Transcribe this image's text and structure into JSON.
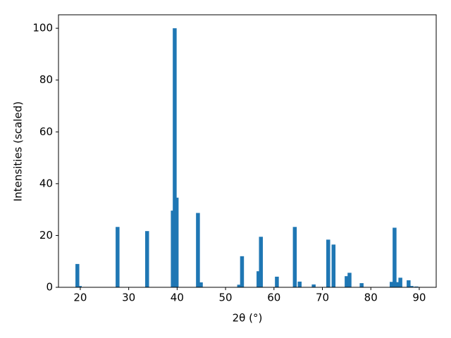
{
  "chart_data": {
    "type": "bar",
    "xlabel": "2θ (°)",
    "ylabel": "Intensities (scaled)",
    "x": [
      19.4,
      19.9,
      27.7,
      33.8,
      39.1,
      39.5,
      39.9,
      44.3,
      44.9,
      52.8,
      53.4,
      56.8,
      57.3,
      60.6,
      64.3,
      65.3,
      68.2,
      71.2,
      72.3,
      75.0,
      75.6,
      78.1,
      84.3,
      84.9,
      85.4,
      86.1,
      87.8,
      88.4,
      89.4
    ],
    "values": [
      9.0,
      0.5,
      23.3,
      21.7,
      29.6,
      100,
      34.6,
      28.7,
      1.9,
      1.0,
      12.0,
      6.2,
      19.5,
      4.1,
      23.3,
      2.2,
      1.1,
      18.4,
      16.5,
      4.3,
      5.6,
      1.6,
      2.1,
      23.0,
      2.0,
      3.7,
      2.7,
      0.5,
      0.3
    ],
    "color": "#1f77b4",
    "xlim": [
      15.5,
      93.5
    ],
    "ylim": [
      0,
      105.2
    ],
    "xticks": [
      20,
      30,
      40,
      50,
      60,
      70,
      80,
      90
    ],
    "yticks": [
      0,
      20,
      40,
      60,
      80,
      100
    ]
  }
}
